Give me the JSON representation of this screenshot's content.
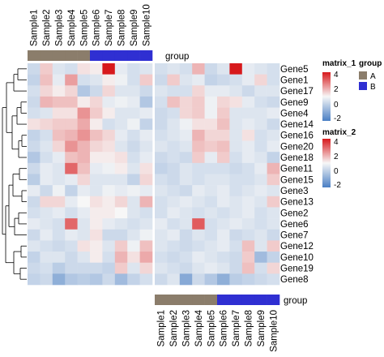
{
  "chart_data": {
    "type": "heatmap",
    "samples": [
      "Sample1",
      "Sample2",
      "Sample3",
      "Sample4",
      "Sample5",
      "Sample6",
      "Sample7",
      "Sample8",
      "Sample9",
      "Sample10"
    ],
    "genes": [
      "Gene5",
      "Gene1",
      "Gene17",
      "Gene9",
      "Gene4",
      "Gene14",
      "Gene16",
      "Gene20",
      "Gene18",
      "Gene11",
      "Gene15",
      "Gene3",
      "Gene13",
      "Gene2",
      "Gene6",
      "Gene7",
      "Gene12",
      "Gene10",
      "Gene19",
      "Gene8"
    ],
    "group_label": "group",
    "group": [
      "A",
      "A",
      "A",
      "A",
      "A",
      "B",
      "B",
      "B",
      "B",
      "B"
    ],
    "group_colors": {
      "A": "#8b7d6b",
      "B": "#2f2fd2"
    },
    "color_scale": {
      "low": -2,
      "mid": 0,
      "high": 2,
      "low_color": "#4a7fc4",
      "mid_color": "#f7f7f7",
      "high_color": "#d7191c"
    },
    "legends": [
      {
        "title": "matrix_1",
        "ticks": [
          4,
          2,
          0,
          -2
        ]
      },
      {
        "title": "group",
        "entries": [
          "A",
          "B"
        ]
      },
      {
        "title": "matrix_2",
        "ticks": [
          4,
          2,
          0,
          -2
        ]
      }
    ],
    "matrix_1": [
      [
        -0.5,
        0.4,
        -0.3,
        -0.4,
        0.2,
        0.1,
        4.0,
        -0.2,
        -0.4,
        -0.3
      ],
      [
        -0.6,
        0.5,
        -0.2,
        0.8,
        -0.4,
        -0.3,
        0.1,
        -0.1,
        -0.4,
        0.4
      ],
      [
        -0.4,
        0.3,
        0.1,
        0.3,
        -0.8,
        -0.5,
        0.3,
        -0.3,
        -0.3,
        -0.5
      ],
      [
        -0.5,
        0.6,
        0.5,
        0.5,
        0.1,
        0.3,
        -0.2,
        -0.1,
        -0.2,
        -0.8
      ],
      [
        -0.4,
        -0.3,
        0.2,
        0.2,
        0.9,
        0.4,
        0.1,
        -0.3,
        -0.3,
        -0.2
      ],
      [
        0.2,
        0.3,
        0.4,
        0.4,
        0.7,
        0.1,
        -0.4,
        -0.3,
        -0.1,
        -0.6
      ],
      [
        -0.6,
        -0.4,
        0.5,
        0.6,
        0.9,
        0.5,
        0.3,
        -0.2,
        -0.4,
        -0.2
      ],
      [
        -0.5,
        -0.3,
        0.3,
        0.9,
        0.6,
        0.3,
        0.2,
        -0.3,
        -0.5,
        -0.3
      ],
      [
        -0.8,
        -0.4,
        -0.2,
        0.5,
        0.6,
        0.1,
        0.1,
        0.2,
        -0.4,
        -0.2
      ],
      [
        -0.5,
        -0.2,
        -0.3,
        1.3,
        0.5,
        -0.2,
        -0.1,
        0.1,
        -0.3,
        0.2
      ],
      [
        -0.7,
        -0.2,
        -0.3,
        -0.2,
        0.3,
        -0.3,
        -0.3,
        -0.3,
        -0.6,
        0.3
      ],
      [
        -0.2,
        -0.5,
        -0.1,
        -0.6,
        -0.2,
        -0.3,
        -0.1,
        -0.2,
        -0.1,
        -0.2
      ],
      [
        -0.5,
        0.3,
        0.3,
        -0.2,
        0.0,
        0.2,
        0.1,
        0.3,
        -0.3,
        0.6
      ],
      [
        -0.4,
        -0.3,
        -0.2,
        -0.4,
        -0.2,
        0.1,
        0.1,
        0.0,
        -0.3,
        -0.4
      ],
      [
        -0.2,
        -0.3,
        -0.4,
        1.3,
        -0.3,
        0.1,
        -0.2,
        -0.3,
        -0.4,
        -0.3
      ],
      [
        -0.5,
        -0.2,
        -0.4,
        -0.2,
        -0.3,
        0.2,
        -0.5,
        -0.5,
        -0.3,
        -0.1
      ],
      [
        -0.3,
        -0.4,
        -0.5,
        -0.4,
        0.2,
        0.1,
        -0.3,
        0.4,
        -0.1,
        0.5
      ],
      [
        -0.6,
        -0.3,
        -0.3,
        -0.5,
        -0.3,
        0.1,
        -0.4,
        0.6,
        0.2,
        0.7
      ],
      [
        -0.5,
        -0.4,
        -0.7,
        -0.5,
        -0.5,
        -0.5,
        -0.6,
        0.4,
        -0.3,
        0.3
      ],
      [
        -0.6,
        -0.5,
        -1.2,
        -0.8,
        -0.7,
        -0.8,
        -0.5,
        -1.0,
        -0.6,
        -0.4
      ]
    ],
    "matrix_2": [
      [
        -0.4,
        -0.3,
        -0.4,
        0.6,
        -0.5,
        -0.3,
        4.0,
        -0.2,
        -0.3,
        -0.4
      ],
      [
        -0.5,
        0.4,
        -0.3,
        -0.2,
        -0.6,
        -0.5,
        -0.4,
        -0.2,
        0.3,
        -0.4
      ],
      [
        -0.3,
        -0.4,
        -0.4,
        0.3,
        -0.2,
        -0.2,
        -0.3,
        -0.5,
        -0.3,
        -0.3
      ],
      [
        -0.4,
        0.5,
        0.3,
        0.4,
        -0.1,
        0.3,
        0.2,
        -0.2,
        -0.4,
        -0.5
      ],
      [
        -0.5,
        -0.4,
        0.3,
        0.4,
        -0.1,
        0.4,
        -0.3,
        -0.3,
        -0.3,
        -0.2
      ],
      [
        -0.5,
        -0.3,
        -0.1,
        0.2,
        0.2,
        0.5,
        -0.3,
        -0.2,
        -0.3,
        -0.5
      ],
      [
        -0.4,
        -0.3,
        -0.2,
        0.6,
        0.3,
        0.3,
        -0.3,
        0.2,
        -0.4,
        -0.3
      ],
      [
        -0.3,
        -0.4,
        -0.3,
        0.5,
        0.4,
        0.5,
        -0.3,
        -0.2,
        -0.4,
        -0.2
      ],
      [
        -0.5,
        -0.4,
        -0.5,
        0.4,
        -0.2,
        0.4,
        -0.4,
        -0.2,
        -0.3,
        -0.6
      ],
      [
        -0.6,
        -0.5,
        -0.3,
        -0.4,
        -0.4,
        -0.4,
        -0.5,
        -0.4,
        -0.2,
        0.6
      ],
      [
        -0.4,
        -0.5,
        -0.3,
        -0.4,
        -0.3,
        -0.3,
        -0.4,
        -0.4,
        -0.3,
        0.4
      ],
      [
        -0.3,
        -0.4,
        -0.5,
        -0.2,
        -0.3,
        -0.2,
        -0.4,
        -0.3,
        -0.2,
        -0.3
      ],
      [
        -0.4,
        -0.3,
        -0.2,
        -0.3,
        -0.4,
        -0.2,
        -0.3,
        -0.2,
        -0.3,
        0.4
      ],
      [
        -0.4,
        -0.2,
        -0.3,
        -0.4,
        -0.3,
        -0.4,
        -0.3,
        -0.2,
        -0.4,
        -0.3
      ],
      [
        -0.2,
        -0.4,
        -0.3,
        1.4,
        -0.4,
        -0.3,
        -0.2,
        -0.3,
        -0.4,
        -0.3
      ],
      [
        -0.3,
        -0.2,
        -0.5,
        -0.3,
        -0.4,
        -0.2,
        -0.5,
        -0.4,
        -0.3,
        -0.5
      ],
      [
        -0.3,
        -0.4,
        -0.5,
        -0.4,
        -0.3,
        -0.2,
        -0.4,
        0.5,
        -0.3,
        0.4
      ],
      [
        -0.4,
        -0.5,
        -0.4,
        -0.2,
        -0.3,
        -0.4,
        -0.5,
        0.4,
        -1.0,
        -0.6
      ],
      [
        -0.3,
        -0.4,
        -0.5,
        -0.3,
        -0.2,
        -0.3,
        -0.5,
        0.5,
        -0.4,
        0.3
      ],
      [
        -0.5,
        -0.3,
        -1.3,
        -0.5,
        -0.8,
        -1.2,
        -0.7,
        -0.6,
        -0.5,
        -0.4
      ]
    ]
  }
}
